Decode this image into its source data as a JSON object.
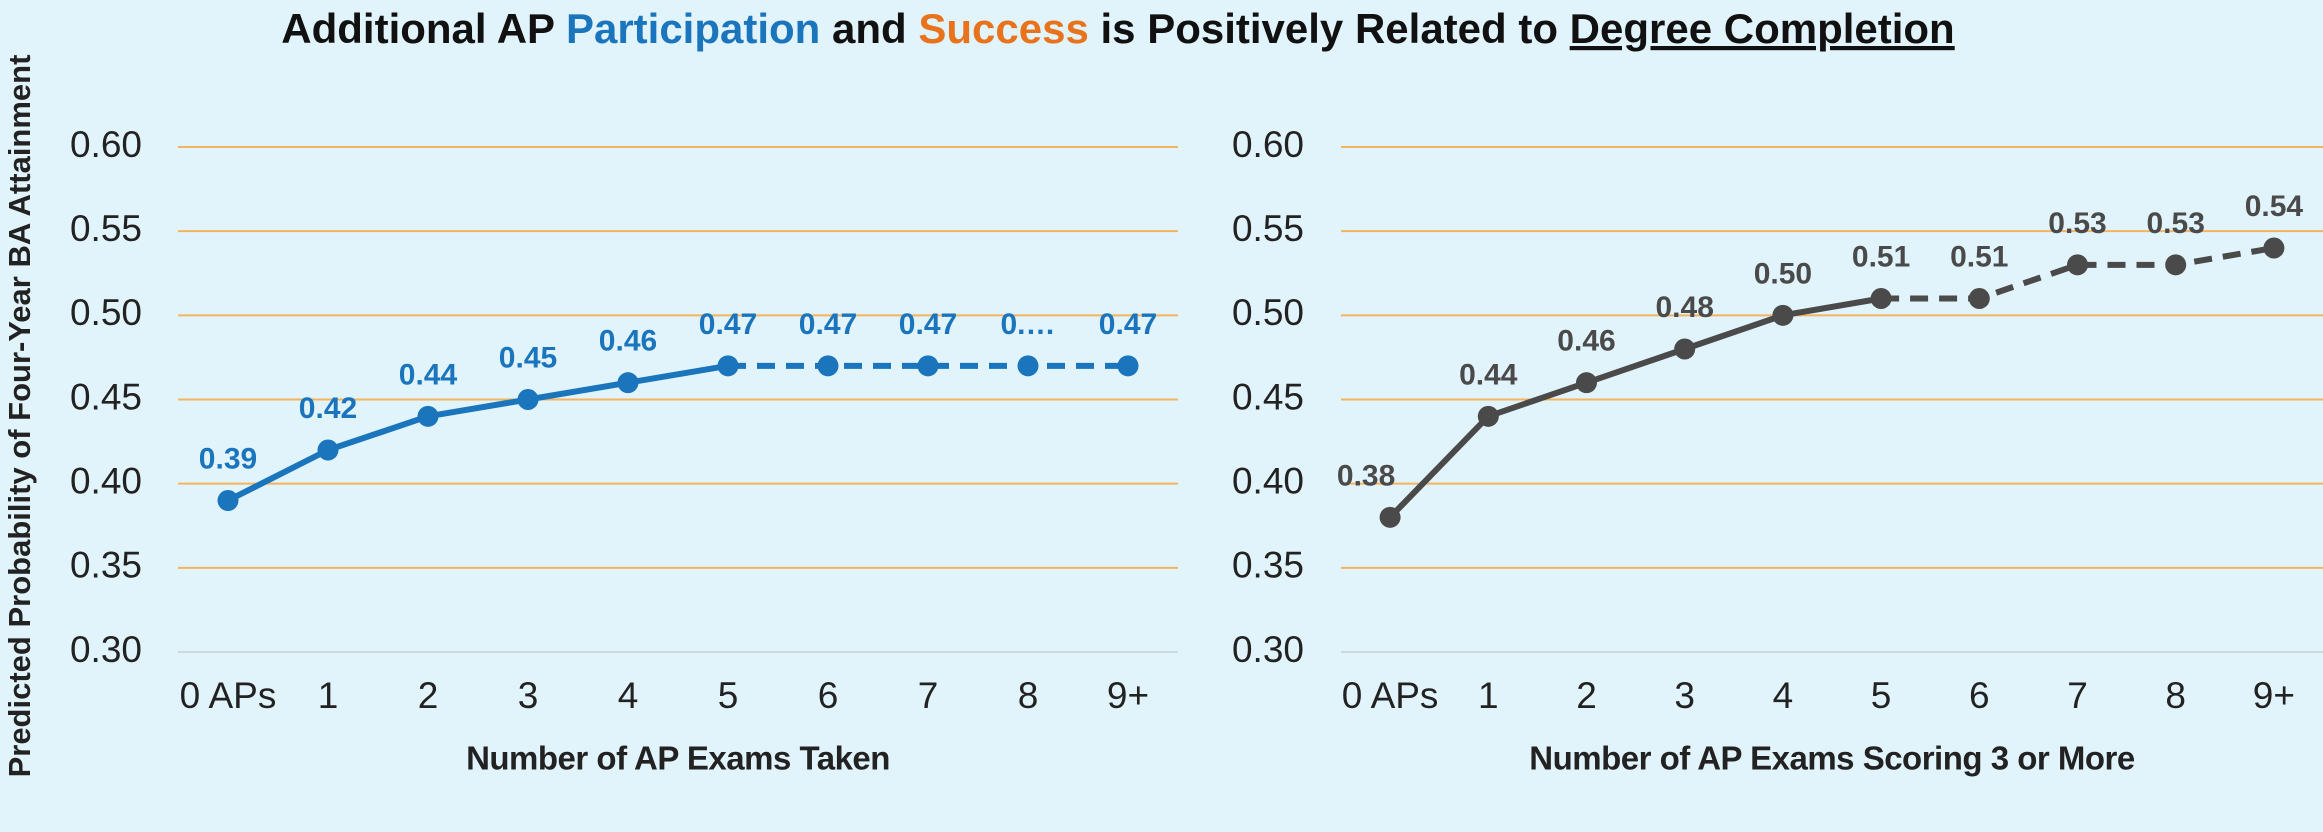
{
  "title_parts": [
    {
      "text": "Additional AP ",
      "color": "#111111"
    },
    {
      "text": "Participation",
      "color": "#1a75bc"
    },
    {
      "text": " and ",
      "color": "#111111"
    },
    {
      "text": "Success",
      "color": "#e8731c"
    },
    {
      "text": " is Positively Related to ",
      "color": "#111111"
    },
    {
      "text": "Degree Completion",
      "color": "#111111",
      "underline": true
    }
  ],
  "y_axis_label": "Predicted Probability of Four-Year BA Attainment",
  "chart_data": [
    {
      "type": "line",
      "x_axis_label": "Number of AP Exams Taken",
      "categories": [
        "0 APs",
        "1",
        "2",
        "3",
        "4",
        "5",
        "6",
        "7",
        "8",
        "9+"
      ],
      "values": [
        0.39,
        0.42,
        0.44,
        0.45,
        0.46,
        0.47,
        0.47,
        0.47,
        0.47,
        0.47
      ],
      "value_labels": [
        "0.39",
        "0.42",
        "0.44",
        "0.45",
        "0.46",
        "0.47",
        "0.47",
        "0.47",
        "0.…",
        "0.47"
      ],
      "color": "#1a75bc",
      "dashed_from": 5,
      "ylim": [
        0.3,
        0.6
      ],
      "yticks": [
        {
          "value": 0.3,
          "label": "0.30"
        },
        {
          "value": 0.35,
          "label": "0.35"
        },
        {
          "value": 0.4,
          "label": "0.40"
        },
        {
          "value": 0.45,
          "label": "0.45"
        },
        {
          "value": 0.5,
          "label": "0.50"
        },
        {
          "value": 0.55,
          "label": "0.55"
        },
        {
          "value": 0.6,
          "label": "0.60"
        }
      ],
      "grid": true
    },
    {
      "type": "line",
      "x_axis_label": "Number of AP Exams Scoring 3 or More",
      "categories": [
        "0 APs",
        "1",
        "2",
        "3",
        "4",
        "5",
        "6",
        "7",
        "8",
        "9+"
      ],
      "values": [
        0.38,
        0.44,
        0.46,
        0.48,
        0.5,
        0.51,
        0.51,
        0.53,
        0.53,
        0.54
      ],
      "value_labels": [
        "0.38",
        "0.44",
        "0.46",
        "0.48",
        "0.50",
        "0.51",
        "0.51",
        "0.53",
        "0.53",
        "0.54"
      ],
      "color": "#4a4a4a",
      "dashed_from": 5,
      "ylim": [
        0.3,
        0.6
      ],
      "yticks": [
        {
          "value": 0.3,
          "label": "0.30"
        },
        {
          "value": 0.35,
          "label": "0.35"
        },
        {
          "value": 0.4,
          "label": "0.40"
        },
        {
          "value": 0.45,
          "label": "0.45"
        },
        {
          "value": 0.5,
          "label": "0.50"
        },
        {
          "value": 0.55,
          "label": "0.55"
        },
        {
          "value": 0.6,
          "label": "0.60"
        }
      ],
      "grid": true
    }
  ]
}
